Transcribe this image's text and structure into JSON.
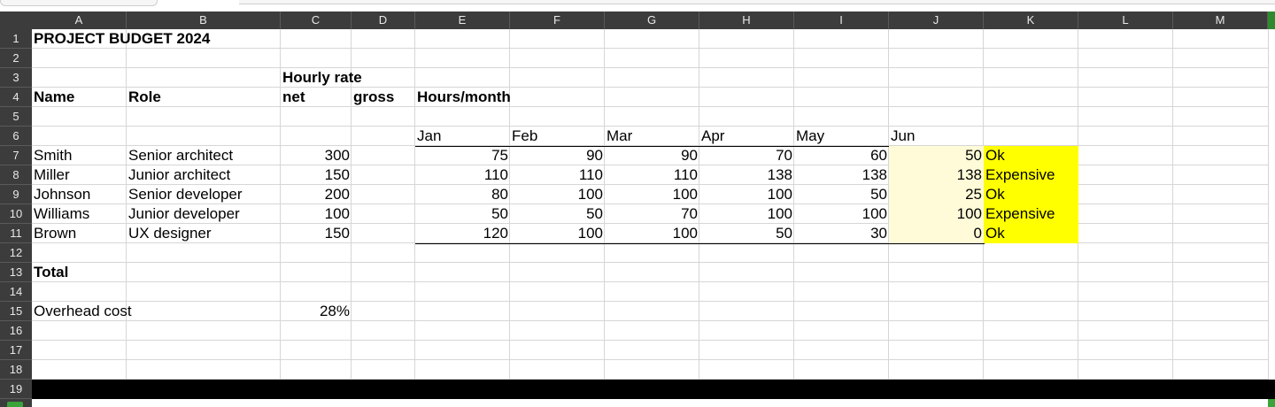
{
  "columns": [
    "A",
    "B",
    "C",
    "D",
    "E",
    "F",
    "G",
    "H",
    "I",
    "J",
    "K",
    "L",
    "M"
  ],
  "rows": [
    "1",
    "2",
    "3",
    "4",
    "5",
    "6",
    "7",
    "8",
    "9",
    "10",
    "11",
    "12",
    "13",
    "14",
    "15",
    "16",
    "17",
    "18",
    "19"
  ],
  "title": "PROJECT BUDGET 2024",
  "header_hourly_rate": "Hourly rate",
  "header_name": "Name",
  "header_role": "Role",
  "header_net": "net",
  "header_gross": "gross",
  "header_hours_month": "Hours/month",
  "months": [
    "Jan",
    "Feb",
    "Mar",
    "Apr",
    "May",
    "Jun"
  ],
  "people": [
    {
      "name": "Smith",
      "role": "Senior architect",
      "net": "300",
      "hours": [
        "75",
        "90",
        "90",
        "70",
        "60",
        "50"
      ],
      "status": "Ok"
    },
    {
      "name": "Miller",
      "role": "Junior architect",
      "net": "150",
      "hours": [
        "110",
        "110",
        "110",
        "138",
        "138",
        "138"
      ],
      "status": "Expensive"
    },
    {
      "name": "Johnson",
      "role": "Senior developer",
      "net": "200",
      "hours": [
        "80",
        "100",
        "100",
        "100",
        "50",
        "25"
      ],
      "status": "Ok"
    },
    {
      "name": "Williams",
      "role": "Junior developer",
      "net": "100",
      "hours": [
        "50",
        "50",
        "70",
        "100",
        "100",
        "100"
      ],
      "status": "Expensive"
    },
    {
      "name": "Brown",
      "role": "UX designer",
      "net": "150",
      "hours": [
        "120",
        "100",
        "100",
        "50",
        "30",
        "0"
      ],
      "status": "Ok"
    }
  ],
  "total_label": "Total",
  "overhead_label": "Overhead cost",
  "overhead_value": "28%",
  "colors": {
    "header_bg": "#3c3c3c",
    "status_fill": "#ffff00",
    "jun_fill": "#fffbd8",
    "selection_green": "#3aa33a"
  }
}
